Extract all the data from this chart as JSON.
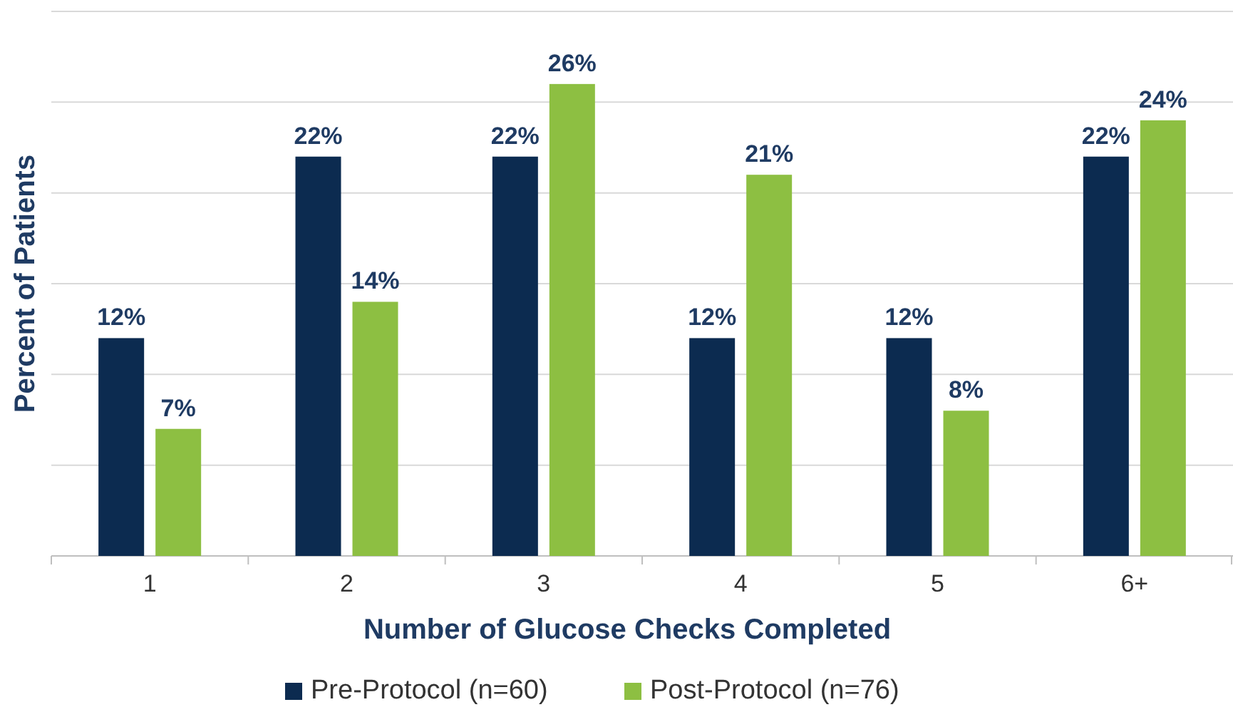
{
  "chart_data": {
    "type": "bar",
    "xlabel": "Number of Glucose Checks Completed",
    "ylabel": "Percent of Patients",
    "categories": [
      "1",
      "2",
      "3",
      "4",
      "5",
      "6+"
    ],
    "series": [
      {
        "name": "Pre-Protocol (n=60)",
        "color": "#0c2b50",
        "values": [
          12,
          22,
          22,
          12,
          12,
          22
        ],
        "value_labels": [
          "12%",
          "22%",
          "22%",
          "12%",
          "12%",
          "22%"
        ]
      },
      {
        "name": "Post-Protocol (n=76)",
        "color": "#8dbf42",
        "values": [
          7,
          14,
          26,
          21,
          8,
          24
        ],
        "value_labels": [
          "7%",
          "14%",
          "26%",
          "21%",
          "8%",
          "24%"
        ]
      }
    ],
    "ylim": [
      0,
      30
    ],
    "yticks": [
      {
        "value": 0,
        "label": null
      },
      {
        "value": 5,
        "label": null
      },
      {
        "value": 10,
        "label": null
      },
      {
        "value": 15,
        "label": null
      },
      {
        "value": 20,
        "label": null
      },
      {
        "value": 25,
        "label": null
      },
      {
        "value": 30,
        "label": null
      }
    ],
    "tick_labels": "x",
    "grid": "y",
    "legend": "bottom"
  }
}
